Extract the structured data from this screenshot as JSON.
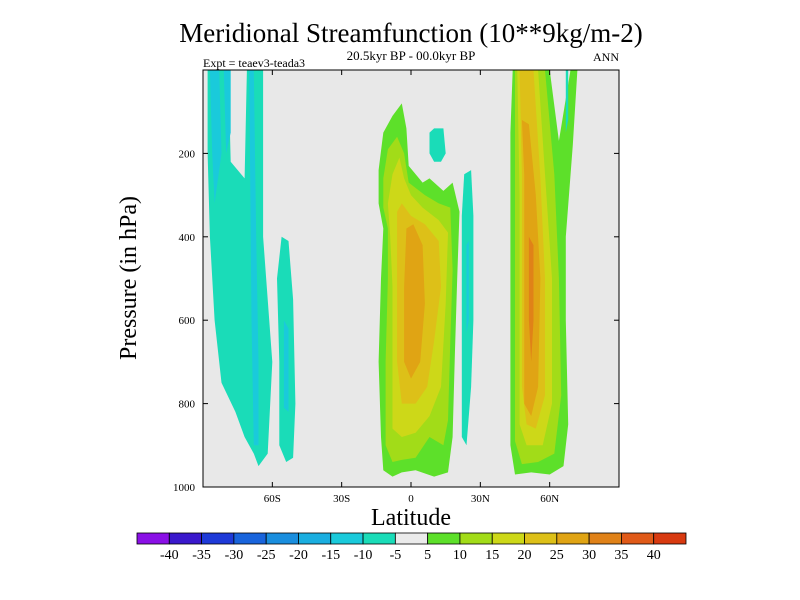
{
  "chart_data": {
    "type": "contour",
    "title": "Meridional Streamfunction (10**9kg/m-2)",
    "subtitle": "20.5kyr BP - 00.0kyr BP",
    "experiment": "Expt = teaev3-teada3",
    "season": "ANN",
    "xlabel": "Latitude",
    "ylabel": "Pressure (in hPa)",
    "xlim": [
      -90,
      90
    ],
    "ylim": [
      1000,
      0
    ],
    "x_ticks": [
      {
        "value": -60,
        "label": "60S"
      },
      {
        "value": -30,
        "label": "30S"
      },
      {
        "value": 0,
        "label": "0"
      },
      {
        "value": 30,
        "label": "30N"
      },
      {
        "value": 60,
        "label": "60N"
      }
    ],
    "y_ticks": [
      {
        "value": 200,
        "label": "200"
      },
      {
        "value": 400,
        "label": "400"
      },
      {
        "value": 600,
        "label": "600"
      },
      {
        "value": 800,
        "label": "800"
      },
      {
        "value": 1000,
        "label": "1000"
      }
    ],
    "colorbar": {
      "levels": [
        "-40",
        "-35",
        "-30",
        "-25",
        "-20",
        "-15",
        "-10",
        "-5",
        "5",
        "10",
        "15",
        "20",
        "25",
        "30",
        "35",
        "40"
      ],
      "colors": [
        "#8a10e6",
        "#3a18cc",
        "#1e3ad8",
        "#1964dc",
        "#1a8ede",
        "#1aaee0",
        "#1acadb",
        "#1adcb8",
        "#ebebeb",
        "#5de02a",
        "#a2dc18",
        "#cdd818",
        "#ddc018",
        "#e0a414",
        "#e08218",
        "#e05a18",
        "#d83a10"
      ]
    },
    "background_color": "#e8e8e8",
    "features": [
      {
        "kind": "band",
        "sign": "negative",
        "lat_range": [
          -88,
          -62
        ],
        "p_range": [
          0,
          960
        ],
        "peak": -10
      },
      {
        "kind": "band",
        "sign": "negative",
        "lat_range": [
          -58,
          -50
        ],
        "p_range": [
          400,
          940
        ],
        "peak": -10
      },
      {
        "kind": "cell",
        "sign": "positive",
        "lat_range": [
          -12,
          20
        ],
        "p_range": [
          80,
          975
        ],
        "peak": 25
      },
      {
        "kind": "band",
        "sign": "negative",
        "lat_range": [
          8,
          28
        ],
        "p_range": [
          90,
          900
        ],
        "peak": -10
      },
      {
        "kind": "cell",
        "sign": "positive",
        "lat_range": [
          42,
          72
        ],
        "p_range": [
          0,
          970
        ],
        "peak": 30
      }
    ]
  }
}
